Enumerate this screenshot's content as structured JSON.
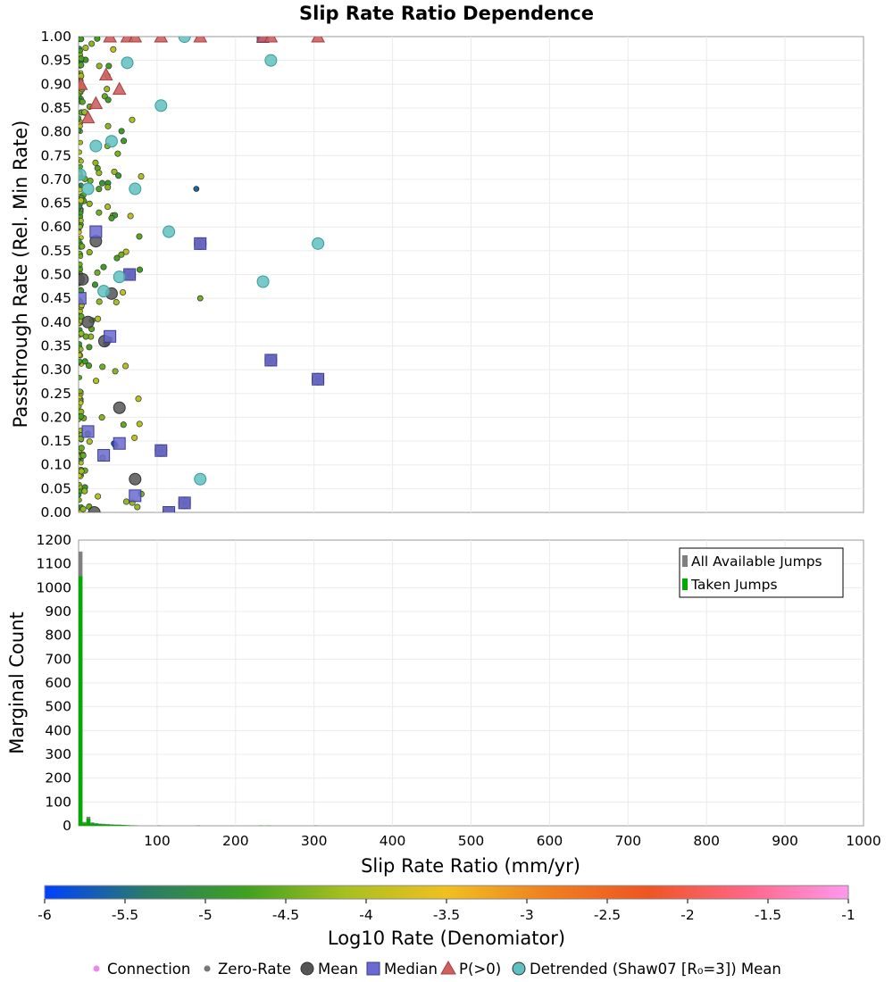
{
  "chart_data": [
    {
      "type": "scatter",
      "title": "Slip Rate Ratio Dependence",
      "xlabel": "",
      "ylabel": "Passthrough Rate (Rel. Min Rate)",
      "xlim": [
        0,
        1000
      ],
      "ylim": [
        0,
        1
      ],
      "grid": true,
      "color_by": "Log10 Rate (Denomiator)",
      "y_ticks": [
        "0.00",
        "0.05",
        "0.10",
        "0.15",
        "0.20",
        "0.25",
        "0.30",
        "0.35",
        "0.40",
        "0.45",
        "0.50",
        "0.55",
        "0.60",
        "0.65",
        "0.70",
        "0.75",
        "0.80",
        "0.85",
        "0.90",
        "0.95",
        "1.00"
      ],
      "series": [
        {
          "name": "Mean",
          "color": "#555555",
          "points": [
            [
              0,
              0.49
            ],
            [
              5,
              0.49
            ],
            [
              12,
              0.4
            ],
            [
              22,
              0.57
            ],
            [
              33,
              0.36
            ],
            [
              42,
              0.46
            ],
            [
              52,
              0.22
            ],
            [
              72,
              0.07
            ],
            [
              105,
              0.13
            ],
            [
              135,
              0.02
            ],
            [
              245,
              0.32
            ],
            [
              305,
              0.28
            ],
            [
              115,
              0.0
            ],
            [
              20,
              0.0
            ],
            [
              155,
              0.565
            ],
            [
              65,
              0.5
            ],
            [
              235,
              1.0
            ]
          ]
        },
        {
          "name": "Median",
          "color": "#6a6ad0",
          "points": [
            [
              22,
              0.59
            ],
            [
              40,
              0.37
            ],
            [
              12,
              0.17
            ],
            [
              32,
              0.12
            ],
            [
              52,
              0.145
            ],
            [
              72,
              0.035
            ],
            [
              65,
              0.5
            ],
            [
              155,
              0.565
            ],
            [
              105,
              0.13
            ],
            [
              135,
              0.02
            ],
            [
              245,
              0.32
            ],
            [
              305,
              0.28
            ],
            [
              115,
              0.0
            ],
            [
              2,
              0.45
            ],
            [
              235,
              1.0
            ]
          ]
        },
        {
          "name": "P(>0)",
          "color": "#d06060",
          "points": [
            [
              35,
              0.92
            ],
            [
              52,
              0.89
            ],
            [
              22,
              0.86
            ],
            [
              12,
              0.83
            ],
            [
              3,
              0.9
            ],
            [
              40,
              1.0
            ],
            [
              62,
              1.0
            ],
            [
              72,
              1.0
            ],
            [
              105,
              1.0
            ],
            [
              155,
              1.0
            ],
            [
              235,
              1.0
            ],
            [
              245,
              1.0
            ],
            [
              305,
              1.0
            ]
          ]
        },
        {
          "name": "Detrended (Shaw07 [R₀=3]) Mean",
          "color": "#60c0c0",
          "points": [
            [
              62,
              0.945
            ],
            [
              245,
              0.95
            ],
            [
              105,
              0.855
            ],
            [
              42,
              0.78
            ],
            [
              22,
              0.77
            ],
            [
              12,
              0.68
            ],
            [
              72,
              0.68
            ],
            [
              115,
              0.59
            ],
            [
              305,
              0.565
            ],
            [
              235,
              0.485
            ],
            [
              52,
              0.495
            ],
            [
              32,
              0.465
            ],
            [
              155,
              0.07
            ],
            [
              135,
              1.0
            ],
            [
              2,
              0.71
            ]
          ]
        },
        {
          "name": "Connection",
          "color": "#ee88ee",
          "points": []
        },
        {
          "name": "Zero-Rate",
          "color": "#777777",
          "points": []
        }
      ]
    },
    {
      "type": "bar",
      "title": "",
      "xlabel": "Slip Rate Ratio (mm/yr)",
      "ylabel": "Marginal Count",
      "xlim": [
        0,
        1000
      ],
      "ylim": [
        0,
        1200
      ],
      "grid": true,
      "legend_position": "top-right",
      "bin_width": 5,
      "x_ticks": [
        "100",
        "200",
        "300",
        "400",
        "500",
        "600",
        "700",
        "800",
        "900",
        "1000"
      ],
      "y_ticks": [
        "0",
        "100",
        "200",
        "300",
        "400",
        "500",
        "600",
        "700",
        "800",
        "900",
        "1000",
        "1100",
        "1200"
      ],
      "bins": [
        2.5,
        7.5,
        12.5,
        17.5,
        22.5,
        27.5,
        32.5,
        37.5,
        42.5,
        47.5,
        52.5,
        57.5,
        62.5,
        67.5,
        72.5,
        102.5,
        152.5,
        232.5,
        242.5,
        302.5
      ],
      "series": [
        {
          "name": "All Available Jumps",
          "color": "#808080",
          "values": [
            1152,
            16,
            38,
            14,
            11,
            9,
            8,
            7,
            6,
            5,
            5,
            4,
            3,
            2,
            2,
            1,
            1,
            1,
            1,
            1
          ]
        },
        {
          "name": "Taken Jumps",
          "color": "#00aa00",
          "values": [
            1048,
            10,
            30,
            10,
            8,
            7,
            6,
            5,
            4,
            4,
            3,
            3,
            2,
            2,
            1,
            1,
            1,
            1,
            1,
            1
          ]
        }
      ]
    },
    {
      "type": "heatmap",
      "title": "",
      "label": "Log10 Rate (Denomiator)",
      "range": [
        -6,
        -1
      ],
      "ticks": [
        "-6",
        "-5.5",
        "-5",
        "-4.5",
        "-4",
        "-3.5",
        "-3",
        "-2.5",
        "-2",
        "-1.5",
        "-1"
      ],
      "colors": [
        "#0040ff",
        "#2a7a6a",
        "#40a020",
        "#a8c020",
        "#f0c020",
        "#f08020",
        "#ee5522",
        "#ff6688",
        "#ff99ee"
      ]
    }
  ],
  "legend": [
    {
      "label": "Connection",
      "marker": "small-circle",
      "color": "#ee88ee"
    },
    {
      "label": "Zero-Rate",
      "marker": "small-circle",
      "color": "#777777"
    },
    {
      "label": "Mean",
      "marker": "circle",
      "color": "#555555"
    },
    {
      "label": "Median",
      "marker": "square",
      "color": "#6a6ad0"
    },
    {
      "label": "P(>0)",
      "marker": "triangle",
      "color": "#d06060"
    },
    {
      "label": "Detrended (Shaw07 [R₀=3]) Mean",
      "marker": "circle",
      "color": "#60c0c0"
    }
  ]
}
